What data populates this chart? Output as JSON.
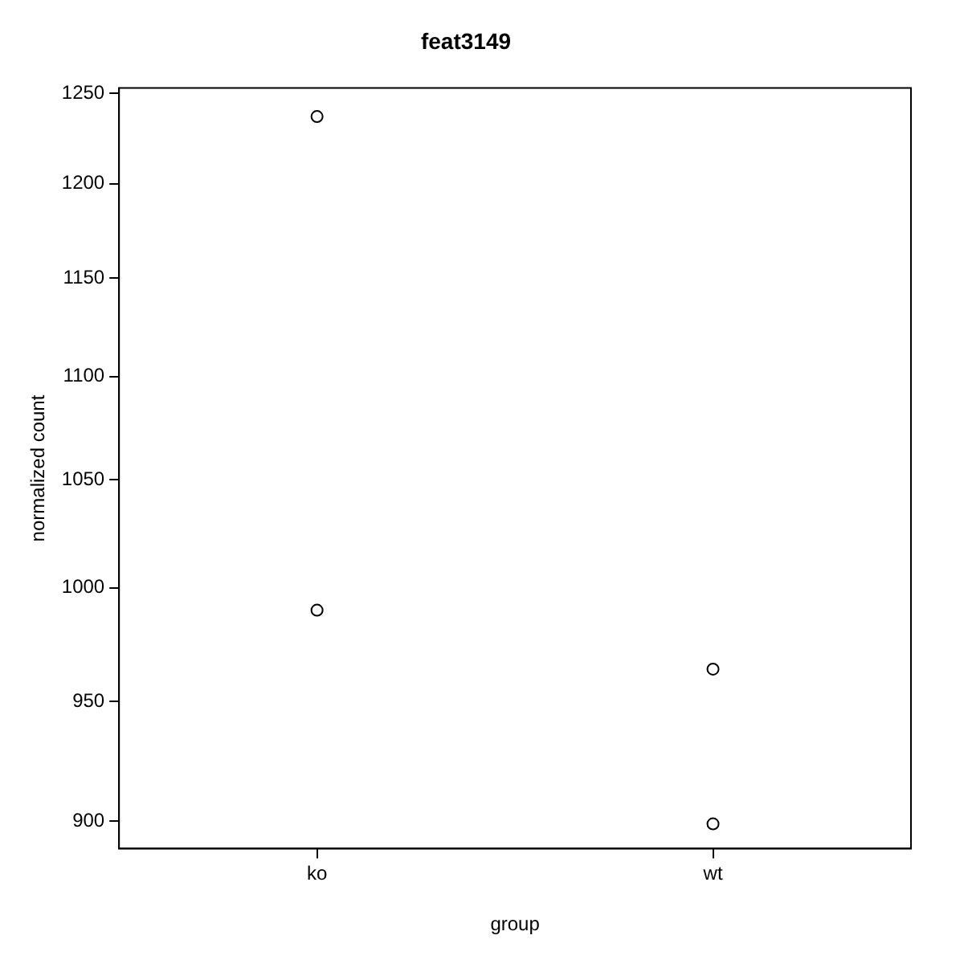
{
  "chart_data": {
    "type": "scatter",
    "title": "feat3149",
    "xlabel": "group",
    "ylabel": "normalized count",
    "categories": [
      "ko",
      "wt"
    ],
    "series": [
      {
        "x": [
          "ko",
          "ko",
          "wt",
          "wt"
        ],
        "values": [
          1237,
          990,
          964,
          899
        ],
        "color": "#000000"
      }
    ],
    "ylim": [
      889,
      1253
    ],
    "yticks": [
      900,
      950,
      1000,
      1050,
      1100,
      1150,
      1200,
      1250
    ],
    "log": "y",
    "grid": false,
    "legend": false,
    "marker": "circle"
  }
}
